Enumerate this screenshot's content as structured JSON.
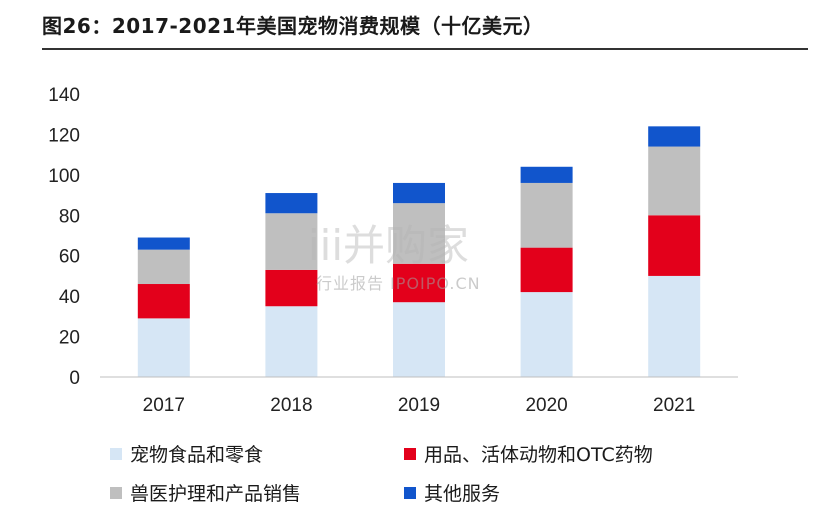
{
  "title": "图26：2017-2021年美国宠物消费规模（十亿美元）",
  "watermark": {
    "main": "iii并购家",
    "sub": "行业报告 IPOIPO.CN"
  },
  "chart_data": {
    "type": "bar",
    "stacked": true,
    "categories": [
      "2017",
      "2018",
      "2019",
      "2020",
      "2021"
    ],
    "ylim": [
      0,
      140
    ],
    "yticks": [
      0,
      20,
      40,
      60,
      80,
      100,
      120,
      140
    ],
    "grid": false,
    "legend_position": "bottom",
    "series": [
      {
        "name": "宠物食品和零食",
        "color": "#d6e6f5",
        "values": [
          29,
          35,
          37,
          42,
          50
        ]
      },
      {
        "name": "用品、活体动物和OTC药物",
        "color": "#e3001b",
        "values": [
          17,
          18,
          19,
          22,
          30
        ]
      },
      {
        "name": "兽医护理和产品销售",
        "color": "#bfbfbf",
        "values": [
          17,
          28,
          30,
          32,
          34
        ]
      },
      {
        "name": "其他服务",
        "color": "#1155cc",
        "values": [
          6,
          10,
          10,
          8,
          10
        ]
      }
    ]
  }
}
